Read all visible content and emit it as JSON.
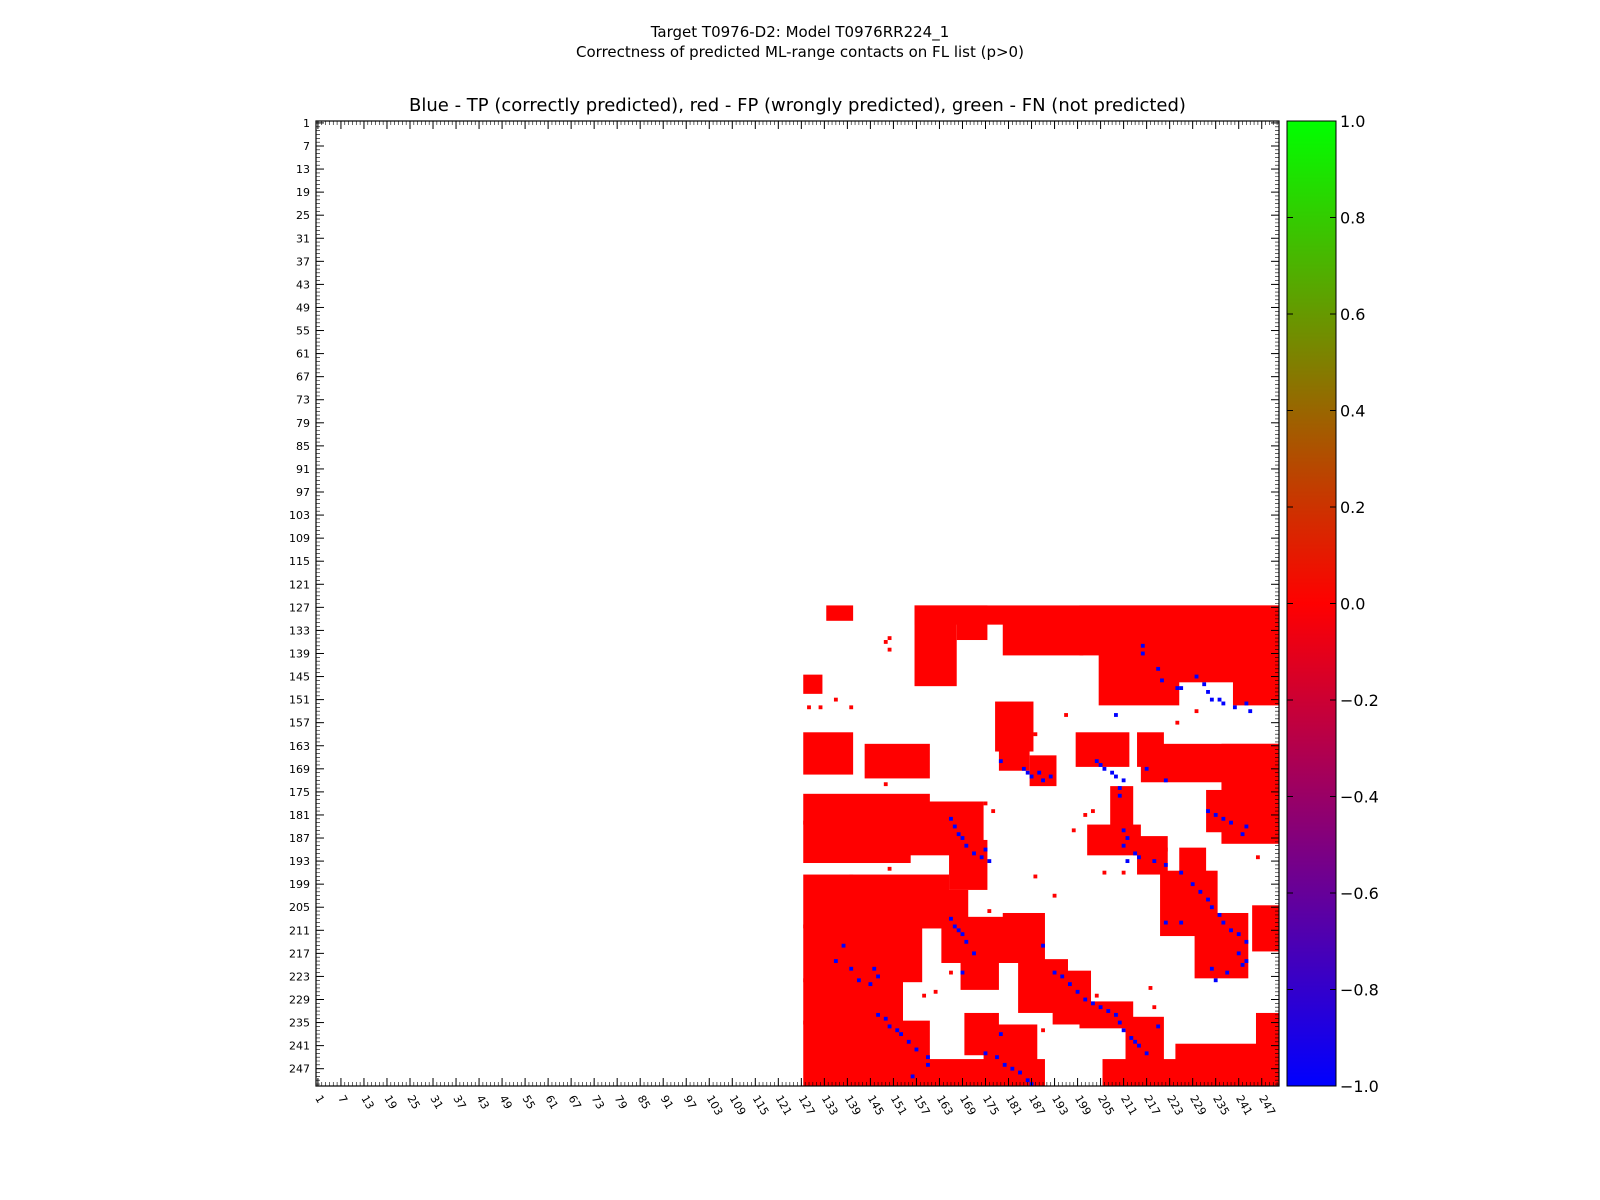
{
  "chart_data": {
    "type": "heatmap",
    "suptitle": [
      "Target T0976-D2: Model T0976RR224_1",
      "Correctness of predicted ML-range contacts on FL list (p>0)"
    ],
    "title": "Blue - TP (correctly predicted), red - FP (wrongly predicted), green - FN (not predicted)",
    "n_residues": 251,
    "xlim": [
      1,
      251
    ],
    "ylim": [
      1,
      251
    ],
    "x_ticks": [
      "1",
      "7",
      "13",
      "19",
      "25",
      "31",
      "37",
      "43",
      "49",
      "55",
      "61",
      "67",
      "73",
      "79",
      "85",
      "91",
      "97",
      "103",
      "109",
      "115",
      "121",
      "127",
      "133",
      "139",
      "145",
      "151",
      "157",
      "163",
      "169",
      "175",
      "181",
      "187",
      "193",
      "199",
      "205",
      "211",
      "217",
      "223",
      "229",
      "235",
      "241",
      "247"
    ],
    "y_ticks": [
      "1",
      "7",
      "13",
      "19",
      "25",
      "31",
      "37",
      "43",
      "49",
      "55",
      "61",
      "67",
      "73",
      "79",
      "85",
      "91",
      "97",
      "103",
      "109",
      "115",
      "121",
      "127",
      "133",
      "139",
      "145",
      "151",
      "157",
      "163",
      "169",
      "175",
      "181",
      "187",
      "193",
      "199",
      "205",
      "211",
      "217",
      "223",
      "229",
      "235",
      "241",
      "247"
    ],
    "colorbar": {
      "range": [
        -1.0,
        1.0
      ],
      "ticks": [
        "1.0",
        "0.8",
        "0.6",
        "0.4",
        "0.2",
        "0.0",
        "−0.2",
        "−0.4",
        "−0.6",
        "−0.8",
        "−1.0"
      ],
      "colors": {
        "low": "#0000ff",
        "mid": "#ff0000",
        "high": "#00ff00"
      }
    },
    "value_legend": {
      "tp": -1,
      "fp": 0,
      "fn": 1
    },
    "colors": {
      "tp": "#0000ff",
      "fp": "#ff0000",
      "fn": "#00ff00"
    },
    "fp_regions": [
      [
        134,
        127,
        140,
        130
      ],
      [
        157,
        127,
        251,
        131
      ],
      [
        157,
        127,
        167,
        147
      ],
      [
        144,
        163,
        160,
        171
      ],
      [
        128,
        145,
        132,
        149
      ],
      [
        128,
        160,
        140,
        170
      ],
      [
        168,
        127,
        175,
        135
      ],
      [
        180,
        131,
        200,
        139
      ],
      [
        200,
        127,
        251,
        139
      ],
      [
        205,
        139,
        225,
        152
      ],
      [
        225,
        139,
        251,
        146
      ],
      [
        240,
        140,
        251,
        152
      ],
      [
        178,
        152,
        187,
        164
      ],
      [
        179,
        164,
        186,
        169
      ],
      [
        187,
        166,
        193,
        173
      ],
      [
        199,
        160,
        212,
        168
      ],
      [
        215,
        160,
        221,
        168
      ],
      [
        216,
        163,
        251,
        172
      ],
      [
        237,
        163,
        251,
        188
      ],
      [
        208,
        174,
        213,
        186
      ],
      [
        202,
        184,
        215,
        191
      ],
      [
        215,
        187,
        222,
        196
      ],
      [
        128,
        176,
        160,
        183
      ],
      [
        128,
        183,
        155,
        193
      ],
      [
        128,
        197,
        165,
        210
      ],
      [
        128,
        210,
        158,
        224
      ],
      [
        128,
        224,
        153,
        235
      ],
      [
        128,
        235,
        160,
        251
      ],
      [
        153,
        178,
        174,
        191
      ],
      [
        166,
        188,
        175,
        200
      ],
      [
        158,
        201,
        170,
        210
      ],
      [
        164,
        208,
        186,
        219
      ],
      [
        169,
        217,
        178,
        226
      ],
      [
        180,
        207,
        190,
        219
      ],
      [
        184,
        219,
        196,
        232
      ],
      [
        193,
        222,
        202,
        235
      ],
      [
        200,
        230,
        213,
        236
      ],
      [
        212,
        234,
        221,
        246
      ],
      [
        170,
        233,
        178,
        243
      ],
      [
        175,
        236,
        188,
        247
      ],
      [
        152,
        245,
        190,
        251
      ],
      [
        206,
        245,
        228,
        251
      ],
      [
        225,
        241,
        251,
        251
      ],
      [
        230,
        207,
        243,
        223
      ],
      [
        221,
        196,
        235,
        212
      ],
      [
        226,
        190,
        232,
        200
      ],
      [
        233,
        175,
        241,
        185
      ],
      [
        246,
        233,
        251,
        241
      ],
      [
        245,
        205,
        251,
        216
      ]
    ],
    "fp_scatter": [
      [
        129,
        153
      ],
      [
        132,
        153
      ],
      [
        136,
        151
      ],
      [
        140,
        153
      ],
      [
        150,
        135
      ],
      [
        149,
        136
      ],
      [
        150,
        138
      ],
      [
        147,
        170
      ],
      [
        149,
        173
      ],
      [
        152,
        183
      ],
      [
        152,
        188
      ],
      [
        150,
        195
      ],
      [
        152,
        198
      ],
      [
        160,
        204
      ],
      [
        147,
        208
      ],
      [
        148,
        211
      ],
      [
        183,
        157
      ],
      [
        188,
        160
      ],
      [
        175,
        178
      ],
      [
        177,
        180
      ],
      [
        185,
        158
      ],
      [
        196,
        155
      ],
      [
        201,
        181
      ],
      [
        203,
        180
      ],
      [
        193,
        202
      ],
      [
        188,
        197
      ],
      [
        166,
        222
      ],
      [
        162,
        227
      ],
      [
        159,
        228
      ],
      [
        195,
        228
      ],
      [
        193,
        231
      ],
      [
        190,
        237
      ],
      [
        225,
        157
      ],
      [
        230,
        154
      ],
      [
        246,
        192
      ],
      [
        222,
        190
      ],
      [
        218,
        226
      ],
      [
        219,
        231
      ],
      [
        204,
        228
      ],
      [
        176,
        206
      ],
      [
        178,
        212
      ],
      [
        184,
        211
      ],
      [
        186,
        214
      ],
      [
        187,
        236
      ],
      [
        181,
        239
      ],
      [
        206,
        196
      ],
      [
        211,
        196
      ],
      [
        198,
        185
      ],
      [
        140,
        197
      ],
      [
        132,
        233
      ]
    ],
    "tp_points": [
      [
        230,
        145
      ],
      [
        232,
        147
      ],
      [
        233,
        149
      ],
      [
        234,
        151
      ],
      [
        236,
        151
      ],
      [
        237,
        152
      ],
      [
        240,
        153
      ],
      [
        243,
        152
      ],
      [
        244,
        154
      ],
      [
        216,
        137
      ],
      [
        216,
        139
      ],
      [
        220,
        143
      ],
      [
        221,
        146
      ],
      [
        225,
        148
      ],
      [
        226,
        148
      ],
      [
        209,
        155
      ],
      [
        179,
        167
      ],
      [
        185,
        169
      ],
      [
        186,
        170
      ],
      [
        187,
        171
      ],
      [
        189,
        170
      ],
      [
        190,
        172
      ],
      [
        192,
        171
      ],
      [
        204,
        167
      ],
      [
        205,
        168
      ],
      [
        206,
        169
      ],
      [
        208,
        170
      ],
      [
        209,
        171
      ],
      [
        211,
        172
      ],
      [
        217,
        169
      ],
      [
        222,
        172
      ],
      [
        166,
        182
      ],
      [
        167,
        184
      ],
      [
        168,
        186
      ],
      [
        169,
        187
      ],
      [
        170,
        189
      ],
      [
        172,
        191
      ],
      [
        174,
        192
      ],
      [
        175,
        190
      ],
      [
        176,
        193
      ],
      [
        212,
        193
      ],
      [
        222,
        194
      ],
      [
        226,
        196
      ],
      [
        229,
        199
      ],
      [
        231,
        201
      ],
      [
        233,
        203
      ],
      [
        234,
        205
      ],
      [
        236,
        207
      ],
      [
        237,
        209
      ],
      [
        239,
        211
      ],
      [
        241,
        212
      ],
      [
        243,
        214
      ],
      [
        226,
        209
      ],
      [
        222,
        209
      ],
      [
        166,
        208
      ],
      [
        167,
        210
      ],
      [
        168,
        211
      ],
      [
        169,
        212
      ],
      [
        170,
        214
      ],
      [
        172,
        217
      ],
      [
        169,
        222
      ],
      [
        138,
        215
      ],
      [
        136,
        219
      ],
      [
        140,
        221
      ],
      [
        142,
        224
      ],
      [
        145,
        225
      ],
      [
        147,
        223
      ],
      [
        146,
        221
      ],
      [
        147,
        233
      ],
      [
        149,
        234
      ],
      [
        150,
        236
      ],
      [
        152,
        237
      ],
      [
        153,
        238
      ],
      [
        155,
        240
      ],
      [
        157,
        242
      ],
      [
        160,
        244
      ],
      [
        160,
        246
      ],
      [
        156,
        249
      ],
      [
        175,
        243
      ],
      [
        178,
        244
      ],
      [
        180,
        246
      ],
      [
        182,
        247
      ],
      [
        184,
        248
      ],
      [
        186,
        250
      ],
      [
        187,
        251
      ],
      [
        179,
        238
      ],
      [
        190,
        215
      ],
      [
        193,
        222
      ],
      [
        195,
        223
      ],
      [
        197,
        225
      ],
      [
        199,
        227
      ],
      [
        201,
        229
      ],
      [
        203,
        230
      ],
      [
        205,
        231
      ],
      [
        207,
        232
      ],
      [
        209,
        233
      ],
      [
        210,
        235
      ],
      [
        211,
        237
      ],
      [
        213,
        239
      ],
      [
        214,
        240
      ],
      [
        215,
        241
      ],
      [
        217,
        243
      ],
      [
        220,
        236
      ],
      [
        233,
        180
      ],
      [
        235,
        181
      ],
      [
        237,
        182
      ],
      [
        239,
        183
      ],
      [
        242,
        186
      ],
      [
        243,
        184
      ],
      [
        210,
        174
      ],
      [
        210,
        176
      ],
      [
        211,
        185
      ],
      [
        212,
        187
      ],
      [
        211,
        189
      ],
      [
        214,
        191
      ],
      [
        215,
        192
      ],
      [
        219,
        193
      ],
      [
        238,
        222
      ],
      [
        241,
        217
      ],
      [
        243,
        219
      ],
      [
        242,
        220
      ],
      [
        234,
        221
      ],
      [
        235,
        224
      ]
    ]
  }
}
